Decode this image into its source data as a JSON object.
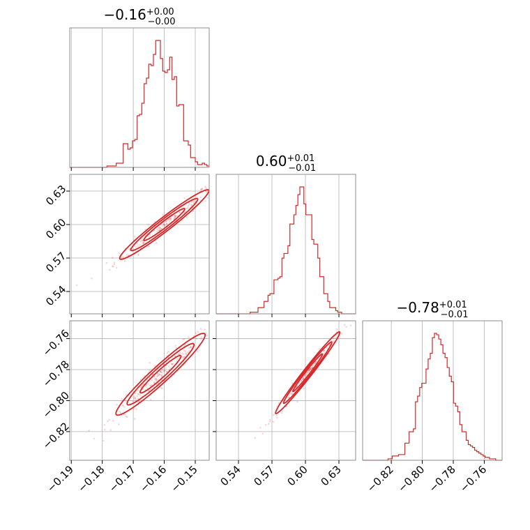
{
  "chart_data": {
    "type": "scatter",
    "color": "#d62728",
    "parameters": [
      {
        "median": -0.16,
        "lim": [
          -0.1905,
          -0.1455
        ],
        "ticks": [
          -0.19,
          -0.18,
          -0.17,
          -0.16,
          -0.15
        ],
        "ticklabels": [
          "−0.19",
          "−0.18",
          "−0.17",
          "−0.16",
          "−0.15"
        ]
      },
      {
        "median": 0.6,
        "lim": [
          0.52,
          0.645
        ],
        "ticks": [
          0.54,
          0.57,
          0.6,
          0.63
        ],
        "ticklabels": [
          "0.54",
          "0.57",
          "0.60",
          "0.63"
        ]
      },
      {
        "median": -0.78,
        "lim": [
          -0.8385,
          -0.7485
        ],
        "ticks": [
          -0.82,
          -0.8,
          -0.78,
          -0.76
        ],
        "ticklabels": [
          "−0.82",
          "−0.80",
          "−0.78",
          "−0.76"
        ]
      }
    ],
    "titles": [
      {
        "main": "−0.16",
        "sup": "+0.00",
        "sub": "−0.00"
      },
      {
        "main": "0.60",
        "sup": "+0.01",
        "sub": "−0.01"
      },
      {
        "main": "−0.78",
        "sup": "+0.01",
        "sub": "−0.01"
      }
    ],
    "histograms": [
      {
        "bins": [
          -0.1905,
          -0.1455
        ],
        "values": [
          0,
          0,
          0,
          0,
          0,
          0,
          0,
          0,
          0,
          0,
          0,
          0,
          0,
          0,
          0,
          0,
          1,
          1,
          1,
          1,
          3,
          3,
          3,
          17,
          17,
          13,
          14,
          19,
          20,
          37,
          38,
          46,
          60,
          64,
          74,
          73,
          81,
          91,
          91,
          78,
          69,
          68,
          70,
          79,
          63,
          65,
          44,
          45,
          45,
          19,
          19,
          16,
          7,
          7,
          4,
          2,
          2,
          3,
          2,
          1
        ]
      },
      {
        "bins": [
          0.52,
          0.645
        ],
        "values": [
          0,
          0,
          0,
          0,
          0,
          0,
          0,
          0,
          0,
          0,
          0,
          0,
          0,
          0,
          0,
          0,
          0,
          1,
          1,
          1,
          1,
          4,
          4,
          4,
          8,
          8,
          12,
          13,
          13,
          22,
          22,
          23,
          24,
          36,
          39,
          39,
          44,
          58,
          58,
          64,
          70,
          77,
          82,
          82,
          71,
          64,
          64,
          64,
          48,
          45,
          45,
          36,
          24,
          24,
          13,
          13,
          8,
          4,
          4,
          4,
          2,
          1,
          1,
          0,
          0,
          0,
          0,
          0,
          0,
          0
        ]
      },
      {
        "bins": [
          -0.8385,
          -0.7485
        ],
        "values": [
          0,
          0,
          0,
          0,
          0,
          0,
          0,
          0,
          0,
          0,
          0,
          0,
          1,
          1,
          3,
          3,
          3,
          4,
          4,
          4,
          12,
          12,
          20,
          20,
          22,
          41,
          45,
          51,
          54,
          54,
          64,
          71,
          75,
          86,
          89,
          88,
          85,
          81,
          75,
          72,
          65,
          59,
          55,
          40,
          38,
          34,
          25,
          20,
          20,
          14,
          11,
          10,
          9,
          7,
          6,
          5,
          4,
          3,
          2,
          2,
          1,
          1,
          1,
          0,
          0,
          0
        ]
      }
    ],
    "pairs": [
      {
        "x": 0,
        "y": 1,
        "ellipse": {
          "center": [
            -0.16,
            0.6
          ],
          "sigma": [
            0.006,
            0.013
          ],
          "rho": 0.97
        },
        "contours": [
          [
            1.1,
            1.2
          ],
          [
            1.8,
            1.0
          ],
          [
            2.4,
            0.8
          ]
        ]
      },
      {
        "x": 0,
        "y": 2,
        "ellipse": {
          "center": [
            -0.1612,
            -0.783
          ],
          "sigma": [
            0.006,
            0.011
          ],
          "rho": 0.96
        },
        "contours": [
          [
            1.1,
            1.2
          ],
          [
            1.8,
            1.0
          ],
          [
            2.4,
            0.8
          ]
        ]
      },
      {
        "x": 1,
        "y": 2,
        "ellipse": {
          "center": [
            0.602,
            -0.782
          ],
          "sigma": [
            0.012,
            0.011
          ],
          "rho": 0.985
        },
        "contours": [
          [
            1.1,
            1.2
          ],
          [
            1.8,
            1.0
          ],
          [
            2.4,
            0.8
          ]
        ]
      }
    ]
  }
}
